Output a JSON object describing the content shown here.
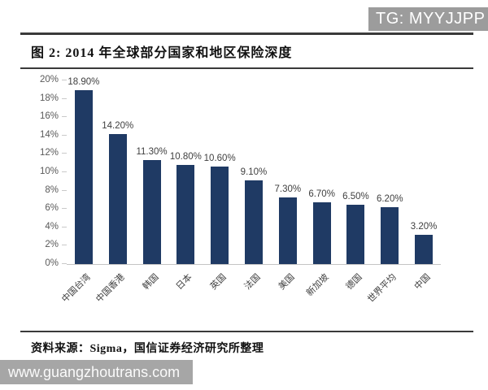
{
  "badge": {
    "text": "TG: MYYJJPP"
  },
  "figure": {
    "title": "图 2: 2014 年全球部分国家和地区保险深度",
    "source": "资料来源：Sigma，国信证券经济研究所整理"
  },
  "watermark": {
    "text": "www.guangzhoutrans.com"
  },
  "colors": {
    "bar": "#1f3a64",
    "badge_bg": "#9c9c9c",
    "watermark_bg": "#a6a6a6",
    "rule": "#3a3a3a",
    "axis": "#c4c4c4",
    "tick_text": "#595959",
    "value_text": "#3f3f3f"
  },
  "chart_data": {
    "type": "bar",
    "title": "2014 年全球部分国家和地区保险深度",
    "categories": [
      "中国台湾",
      "中国香港",
      "韩国",
      "日本",
      "英国",
      "法国",
      "美国",
      "新加坡",
      "德国",
      "世界平均",
      "中国"
    ],
    "values": [
      18.9,
      14.2,
      11.3,
      10.8,
      10.6,
      9.1,
      7.3,
      6.7,
      6.5,
      6.2,
      3.2
    ],
    "value_labels": [
      "18.90%",
      "14.20%",
      "11.30%",
      "10.80%",
      "10.60%",
      "9.10%",
      "7.30%",
      "6.70%",
      "6.50%",
      "6.20%",
      "3.20%"
    ],
    "xlabel": "",
    "ylabel": "",
    "ylim": [
      0,
      20
    ],
    "ytick_step": 2,
    "yticks": [
      "0%",
      "2%",
      "4%",
      "6%",
      "8%",
      "10%",
      "12%",
      "14%",
      "16%",
      "18%",
      "20%"
    ],
    "grid": false,
    "legend": "none",
    "bar_color": "#1f3a64"
  }
}
